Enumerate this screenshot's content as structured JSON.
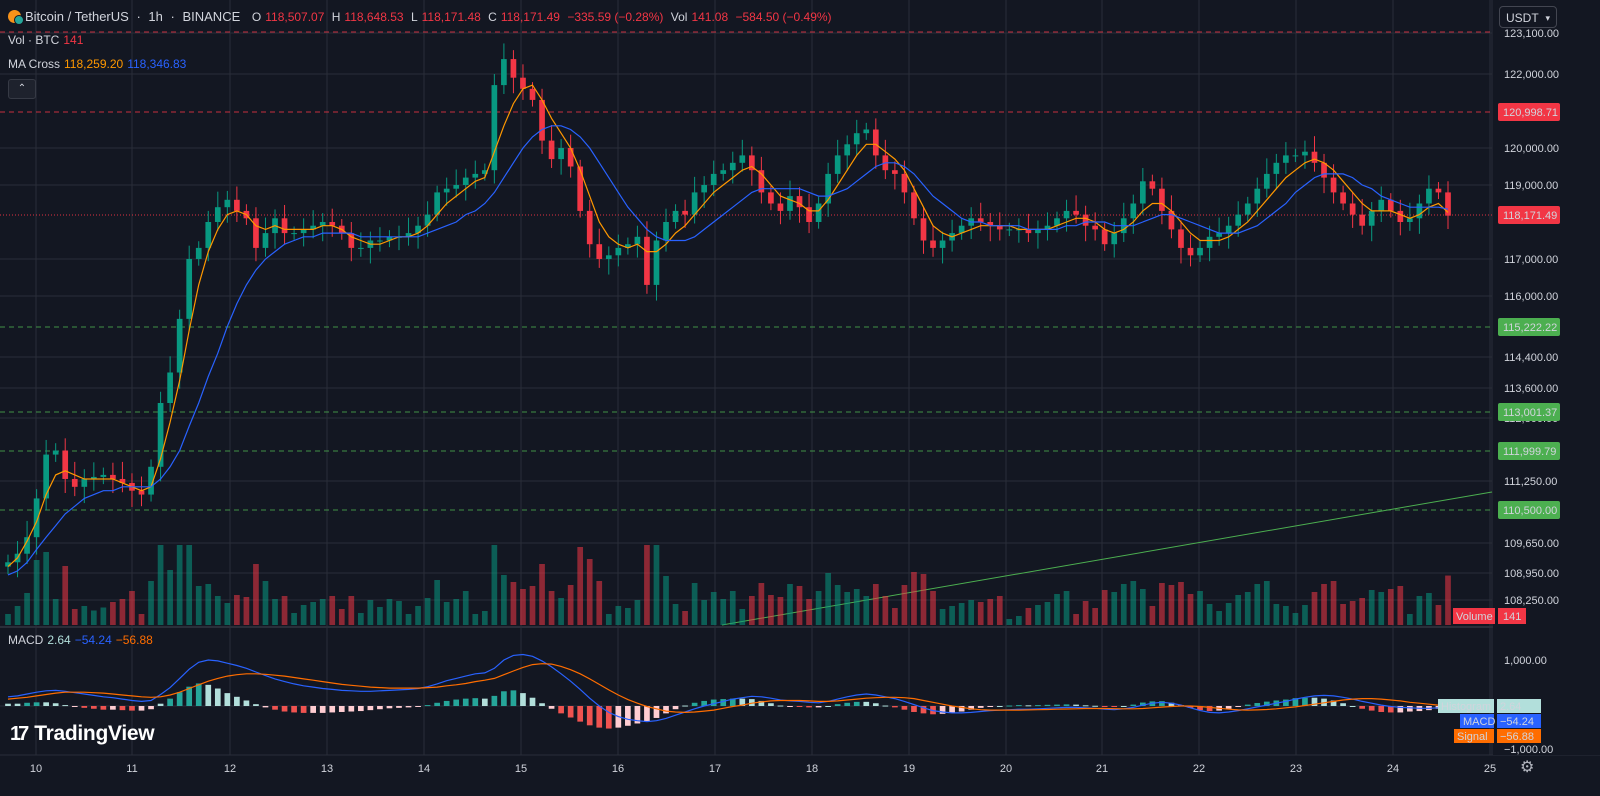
{
  "header": {
    "symbol": "Bitcoin / TetherUS",
    "sep1": "·",
    "interval": "1h",
    "sep2": "·",
    "exchange": "BINANCE",
    "open_label": "O",
    "open": "118,507.07",
    "high_label": "H",
    "high": "118,648.53",
    "low_label": "L",
    "low": "118,171.48",
    "close_label": "C",
    "close": "118,171.49",
    "change": "−335.59 (−0.28%)",
    "vol_label": "Vol",
    "vol": "141.08",
    "vol_change": "−584.50 (−0.49%)"
  },
  "volume_legend": {
    "label": "Vol · BTC",
    "value": "141"
  },
  "ma_legend": {
    "label": "MA Cross",
    "fast": "118,259.20",
    "slow": "118,346.83"
  },
  "collapse_button": "⌃",
  "currency": {
    "value": "USDT",
    "caret": "▾"
  },
  "price_axis": {
    "ticks": [
      "123,100.00",
      "122,000.00",
      "120,000.00",
      "119,000.00",
      "117,000.00",
      "116,000.00",
      "114,400.00",
      "113,600.00",
      "112,800.00",
      "111,250.00",
      "109,650.00",
      "108,950.00",
      "108,250.00"
    ],
    "badges": [
      {
        "label": "120,998.71",
        "color": "#f23645"
      },
      {
        "label": "118,171.49",
        "color": "#f23645"
      },
      {
        "label": "115,222.22",
        "color": "#4caf50"
      },
      {
        "label": "113,001.37",
        "color": "#4caf50"
      },
      {
        "label": "111,999.79",
        "color": "#4caf50"
      },
      {
        "label": "110,500.00",
        "color": "#4caf50"
      }
    ],
    "volume_badge": {
      "label": "Volume",
      "value": "141"
    }
  },
  "macd_legend": {
    "label": "MACD",
    "hist": "2.64",
    "macd": "−54.24",
    "signal": "−56.88"
  },
  "macd_axis": {
    "ticks": [
      "1,000.00",
      "−1,000.00"
    ],
    "badges": [
      {
        "label": "Histogram",
        "value": "2.64",
        "color": "#b2dfdb"
      },
      {
        "label": "MACD",
        "value": "−54.24",
        "color": "#2962ff"
      },
      {
        "label": "Signal",
        "value": "−56.88",
        "color": "#ff6d00"
      }
    ]
  },
  "time_axis": {
    "ticks": [
      "10",
      "11",
      "12",
      "13",
      "14",
      "15",
      "16",
      "17",
      "18",
      "19",
      "20",
      "21",
      "22",
      "23",
      "24",
      "25"
    ]
  },
  "logo": {
    "mark": "17",
    "text": "TradingView"
  },
  "settings_icon": "⚙",
  "colors": {
    "up": "#089981",
    "down": "#f23645",
    "ma_fast": "#ff9800",
    "ma_slow": "#2962ff",
    "grid": "#2a2e39"
  },
  "chart_data": {
    "type": "candlestick",
    "symbol": "BTCUSDT",
    "interval": "1h",
    "y_range": [
      108000,
      123300
    ],
    "closes": [
      109200,
      109400,
      109800,
      110800,
      111900,
      112000,
      111300,
      111100,
      111300,
      111350,
      111400,
      111300,
      111200,
      111000,
      110900,
      111600,
      113200,
      114000,
      115400,
      117000,
      117300,
      118000,
      118400,
      118600,
      118300,
      118100,
      117300,
      117700,
      118100,
      117700,
      117700,
      117800,
      117900,
      118000,
      117900,
      117700,
      117300,
      117300,
      117500,
      117500,
      117600,
      117600,
      117700,
      117900,
      118200,
      118800,
      118900,
      119000,
      119200,
      119300,
      119400,
      121700,
      122400,
      121900,
      121600,
      121300,
      120200,
      119700,
      120000,
      119500,
      118300,
      117400,
      117000,
      117100,
      117300,
      117400,
      117600,
      116300,
      117500,
      118000,
      118300,
      118200,
      118800,
      119000,
      119300,
      119400,
      119600,
      119800,
      119400,
      118800,
      118500,
      118300,
      118700,
      118400,
      118000,
      118500,
      119300,
      119800,
      120100,
      120400,
      120500,
      119800,
      119400,
      119300,
      118800,
      118100,
      117500,
      117300,
      117500,
      117700,
      117900,
      118100,
      118000,
      117900,
      117800,
      117800,
      117800,
      117700,
      117800,
      117900,
      118100,
      118300,
      118200,
      117900,
      117800,
      117400,
      117700,
      118100,
      118500,
      119100,
      118900,
      118300,
      117800,
      117300,
      117100,
      117300,
      117600,
      117700,
      117900,
      118200,
      118500,
      118900,
      119300,
      119600,
      119800,
      119800,
      119900,
      119600,
      119200,
      118800,
      118500,
      118200,
      117900,
      118300,
      118600,
      118300,
      118000,
      118100,
      118500,
      118900,
      118800,
      118171
    ],
    "ma_fast": [
      109100,
      109300,
      109700,
      110200,
      110900,
      111400,
      111500,
      111400,
      111300,
      111300,
      111300,
      111300,
      111200,
      111100,
      111000,
      111100,
      111800,
      112700,
      113800,
      115100,
      116300,
      117200,
      117800,
      118200,
      118300,
      118200,
      117900,
      117800,
      117900,
      117800,
      117800,
      117800,
      117800,
      117900,
      117900,
      117800,
      117600,
      117500,
      117400,
      117400,
      117500,
      117600,
      117600,
      117700,
      117900,
      118200,
      118500,
      118700,
      118900,
      119100,
      119200,
      119900,
      120600,
      121200,
      121600,
      121700,
      121300,
      120800,
      120400,
      120000,
      119400,
      118700,
      118000,
      117600,
      117400,
      117300,
      117400,
      117200,
      117200,
      117400,
      117700,
      117900,
      118200,
      118500,
      118800,
      119000,
      119200,
      119400,
      119500,
      119300,
      119000,
      118700,
      118600,
      118500,
      118300,
      118300,
      118600,
      119000,
      119400,
      119800,
      120100,
      120100,
      119900,
      119700,
      119400,
      118900,
      118400,
      117900,
      117700,
      117600,
      117700,
      117800,
      117900,
      117900,
      117900,
      117900,
      117800,
      117800,
      117800,
      117800,
      117900,
      118000,
      118100,
      118100,
      118000,
      117800,
      117700,
      117800,
      118000,
      118300,
      118500,
      118500,
      118300,
      118000,
      117700,
      117500,
      117500,
      117500,
      117600,
      117800,
      118000,
      118300,
      118600,
      118900,
      119200,
      119400,
      119600,
      119700,
      119600,
      119400,
      119100,
      118800,
      118500,
      118300,
      118300,
      118300,
      118200,
      118100,
      118200,
      118400,
      118500,
      118260
    ],
    "ma_slow": [
      108900,
      109000,
      109200,
      109500,
      109800,
      110100,
      110400,
      110600,
      110800,
      110900,
      111000,
      111000,
      111100,
      111100,
      111100,
      111100,
      111300,
      111600,
      112000,
      112600,
      113200,
      113900,
      114500,
      115200,
      115800,
      116300,
      116700,
      117000,
      117200,
      117400,
      117500,
      117600,
      117600,
      117700,
      117700,
      117700,
      117700,
      117600,
      117600,
      117600,
      117600,
      117600,
      117600,
      117600,
      117700,
      117800,
      117900,
      118000,
      118200,
      118300,
      118500,
      118800,
      119200,
      119600,
      120000,
      120300,
      120500,
      120600,
      120600,
      120500,
      120300,
      120000,
      119600,
      119200,
      118800,
      118400,
      118100,
      117800,
      117600,
      117500,
      117500,
      117500,
      117600,
      117800,
      118000,
      118200,
      118400,
      118600,
      118800,
      118900,
      118900,
      118900,
      118900,
      118900,
      118800,
      118700,
      118700,
      118800,
      118900,
      119100,
      119300,
      119500,
      119600,
      119600,
      119500,
      119300,
      119000,
      118700,
      118500,
      118300,
      118100,
      118000,
      118000,
      117900,
      117900,
      117900,
      117900,
      117800,
      117800,
      117800,
      117800,
      117900,
      117900,
      118000,
      118000,
      118000,
      117900,
      117900,
      117900,
      118000,
      118100,
      118200,
      118200,
      118100,
      118000,
      117900,
      117800,
      117700,
      117700,
      117700,
      117800,
      117900,
      118100,
      118300,
      118500,
      118800,
      119000,
      119200,
      119300,
      119300,
      119300,
      119200,
      119000,
      118900,
      118700,
      118600,
      118500,
      118400,
      118400,
      118400,
      118400,
      118347
    ],
    "macd": [
      200,
      220,
      260,
      300,
      330,
      340,
      320,
      290,
      260,
      230,
      200,
      180,
      150,
      120,
      100,
      120,
      250,
      400,
      600,
      800,
      950,
      1000,
      980,
      930,
      880,
      820,
      740,
      660,
      590,
      530,
      480,
      440,
      410,
      380,
      360,
      340,
      330,
      320,
      320,
      330,
      340,
      350,
      360,
      380,
      420,
      480,
      550,
      600,
      650,
      700,
      720,
      820,
      1000,
      1100,
      1120,
      1080,
      980,
      850,
      700,
      540,
      360,
      170,
      0,
      -140,
      -230,
      -290,
      -320,
      -340,
      -320,
      -270,
      -200,
      -130,
      -60,
      0,
      50,
      100,
      150,
      180,
      210,
      200,
      170,
      130,
      110,
      100,
      80,
      70,
      100,
      150,
      200,
      240,
      260,
      240,
      200,
      160,
      100,
      30,
      -40,
      -100,
      -130,
      -150,
      -150,
      -140,
      -120,
      -100,
      -90,
      -80,
      -70,
      -70,
      -60,
      -50,
      -40,
      -30,
      -30,
      -40,
      -50,
      -70,
      -80,
      -60,
      -30,
      20,
      60,
      80,
      60,
      20,
      -40,
      -100,
      -140,
      -150,
      -130,
      -100,
      -60,
      -20,
      20,
      60,
      100,
      150,
      190,
      220,
      230,
      220,
      190,
      150,
      100,
      60,
      20,
      -10,
      -30,
      -40,
      -50,
      -50,
      -40,
      -30,
      -40,
      -54
    ],
    "signal": [
      150,
      170,
      190,
      220,
      250,
      280,
      300,
      300,
      300,
      290,
      280,
      260,
      240,
      220,
      200,
      190,
      200,
      240,
      300,
      380,
      460,
      540,
      600,
      650,
      680,
      700,
      700,
      690,
      670,
      650,
      620,
      590,
      560,
      530,
      500,
      470,
      450,
      430,
      410,
      400,
      390,
      390,
      390,
      390,
      400,
      410,
      440,
      460,
      490,
      530,
      560,
      600,
      680,
      760,
      840,
      900,
      920,
      910,
      860,
      790,
      700,
      590,
      470,
      350,
      240,
      140,
      60,
      -10,
      -60,
      -110,
      -130,
      -140,
      -130,
      -110,
      -90,
      -50,
      -10,
      20,
      60,
      90,
      110,
      120,
      120,
      120,
      110,
      100,
      100,
      110,
      130,
      150,
      170,
      180,
      190,
      190,
      180,
      160,
      120,
      80,
      40,
      0,
      -30,
      -60,
      -80,
      -90,
      -90,
      -90,
      -90,
      -85,
      -80,
      -75,
      -70,
      -65,
      -60,
      -55,
      -55,
      -55,
      -58,
      -60,
      -60,
      -55,
      -40,
      -25,
      -10,
      0,
      0,
      -10,
      -30,
      -50,
      -70,
      -85,
      -90,
      -85,
      -75,
      -60,
      -40,
      -20,
      10,
      40,
      70,
      100,
      130,
      150,
      160,
      160,
      150,
      130,
      110,
      80,
      60,
      40,
      20,
      0,
      -10,
      -20,
      -30,
      -35,
      -40,
      -57
    ],
    "x_ticks": [
      "10",
      "11",
      "12",
      "13",
      "14",
      "15",
      "16",
      "17",
      "18",
      "19",
      "20",
      "21",
      "22",
      "23",
      "24",
      "25"
    ]
  }
}
